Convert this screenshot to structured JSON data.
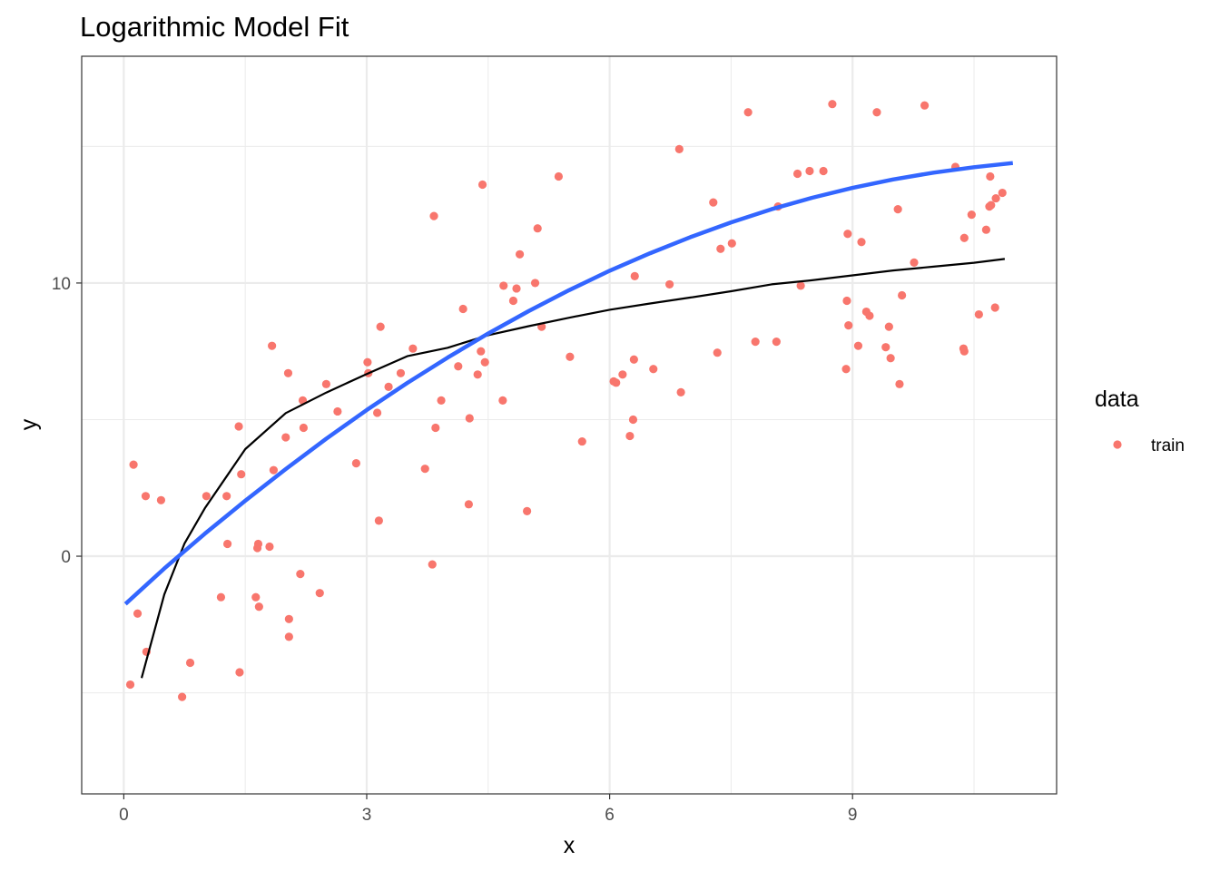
{
  "chart_data": {
    "type": "scatter",
    "title": "Logarithmic Model Fit",
    "xlabel": "x",
    "ylabel": "y",
    "xlim": [
      -0.52,
      11.52
    ],
    "ylim": [
      -8.7,
      18.3
    ],
    "x_ticks": [
      0,
      3,
      6,
      9
    ],
    "y_ticks": [
      0,
      10
    ],
    "grid": true,
    "legend": {
      "title": "data",
      "position": "right",
      "entries": [
        "train"
      ]
    },
    "colors": {
      "train": "#f8766d",
      "fit_line": "#3366ff",
      "trend_line": "#000000",
      "grid": "#ebebeb"
    },
    "series": [
      {
        "name": "train",
        "points": [
          [
            0.08,
            -4.7
          ],
          [
            0.12,
            3.35
          ],
          [
            0.17,
            -2.1
          ],
          [
            0.27,
            2.2
          ],
          [
            0.28,
            -3.5
          ],
          [
            0.46,
            2.05
          ],
          [
            0.72,
            -5.15
          ],
          [
            0.82,
            -3.9
          ],
          [
            1.02,
            2.2
          ],
          [
            1.2,
            -1.5
          ],
          [
            1.27,
            2.2
          ],
          [
            1.28,
            0.45
          ],
          [
            1.42,
            4.75
          ],
          [
            1.43,
            -4.25
          ],
          [
            1.45,
            3.0
          ],
          [
            1.63,
            -1.5
          ],
          [
            1.65,
            0.3
          ],
          [
            1.66,
            0.45
          ],
          [
            1.67,
            -1.85
          ],
          [
            1.8,
            0.35
          ],
          [
            1.83,
            7.7
          ],
          [
            1.85,
            3.15
          ],
          [
            2.0,
            4.35
          ],
          [
            2.03,
            6.7
          ],
          [
            2.04,
            -2.3
          ],
          [
            2.04,
            -2.95
          ],
          [
            2.18,
            -0.65
          ],
          [
            2.21,
            5.7
          ],
          [
            2.22,
            4.7
          ],
          [
            2.42,
            -1.35
          ],
          [
            2.5,
            6.3
          ],
          [
            2.64,
            5.3
          ],
          [
            2.87,
            3.4
          ],
          [
            3.01,
            7.1
          ],
          [
            3.02,
            6.7
          ],
          [
            3.13,
            5.25
          ],
          [
            3.15,
            1.3
          ],
          [
            3.17,
            8.4
          ],
          [
            3.27,
            6.2
          ],
          [
            3.42,
            6.7
          ],
          [
            3.57,
            7.6
          ],
          [
            3.72,
            3.2
          ],
          [
            3.81,
            -0.3
          ],
          [
            3.83,
            12.45
          ],
          [
            3.85,
            4.7
          ],
          [
            3.92,
            5.7
          ],
          [
            4.13,
            6.95
          ],
          [
            4.19,
            9.05
          ],
          [
            4.26,
            1.9
          ],
          [
            4.27,
            5.05
          ],
          [
            4.37,
            6.65
          ],
          [
            4.41,
            7.5
          ],
          [
            4.43,
            13.6
          ],
          [
            4.46,
            7.1
          ],
          [
            4.68,
            5.7
          ],
          [
            4.69,
            9.9
          ],
          [
            4.81,
            9.35
          ],
          [
            4.85,
            9.8
          ],
          [
            4.89,
            11.05
          ],
          [
            4.98,
            1.65
          ],
          [
            5.08,
            10.0
          ],
          [
            5.11,
            12.0
          ],
          [
            5.16,
            8.4
          ],
          [
            5.37,
            13.9
          ],
          [
            5.51,
            7.3
          ],
          [
            5.66,
            4.2
          ],
          [
            6.05,
            6.4
          ],
          [
            6.08,
            6.35
          ],
          [
            6.16,
            6.65
          ],
          [
            6.25,
            4.4
          ],
          [
            6.29,
            5.0
          ],
          [
            6.3,
            7.2
          ],
          [
            6.31,
            10.25
          ],
          [
            6.54,
            6.85
          ],
          [
            6.74,
            9.95
          ],
          [
            6.86,
            14.9
          ],
          [
            6.88,
            6.0
          ],
          [
            7.28,
            12.95
          ],
          [
            7.33,
            7.45
          ],
          [
            7.37,
            11.25
          ],
          [
            7.51,
            11.45
          ],
          [
            7.71,
            16.25
          ],
          [
            7.8,
            7.85
          ],
          [
            8.06,
            7.85
          ],
          [
            8.08,
            12.8
          ],
          [
            8.32,
            14.0
          ],
          [
            8.36,
            9.9
          ],
          [
            8.47,
            14.1
          ],
          [
            8.64,
            14.1
          ],
          [
            8.75,
            16.55
          ],
          [
            8.92,
            6.85
          ],
          [
            8.93,
            9.35
          ],
          [
            8.94,
            11.8
          ],
          [
            8.95,
            8.45
          ],
          [
            9.07,
            7.7
          ],
          [
            9.11,
            11.5
          ],
          [
            9.17,
            8.95
          ],
          [
            9.21,
            8.8
          ],
          [
            9.3,
            16.25
          ],
          [
            9.41,
            7.65
          ],
          [
            9.45,
            8.4
          ],
          [
            9.47,
            7.25
          ],
          [
            9.56,
            12.7
          ],
          [
            9.58,
            6.3
          ],
          [
            9.61,
            9.55
          ],
          [
            9.76,
            10.75
          ],
          [
            9.89,
            16.5
          ],
          [
            10.27,
            14.25
          ],
          [
            10.37,
            7.6
          ],
          [
            10.38,
            7.5
          ],
          [
            10.38,
            11.65
          ],
          [
            10.47,
            12.5
          ],
          [
            10.56,
            8.85
          ],
          [
            10.65,
            11.95
          ],
          [
            10.69,
            12.8
          ],
          [
            10.7,
            13.9
          ],
          [
            10.71,
            12.85
          ],
          [
            10.76,
            9.1
          ],
          [
            10.77,
            13.1
          ],
          [
            10.85,
            13.3
          ]
        ]
      },
      {
        "name": "",
        "kind": "line",
        "x": [
          0.22,
          0.5,
          0.75,
          1.0,
          1.5,
          2.0,
          2.5,
          3.0,
          3.5,
          4.0,
          4.5,
          5.0,
          5.5,
          6.0,
          6.5,
          7.0,
          7.5,
          8.0,
          8.5,
          9.0,
          9.5,
          10.0,
          10.5,
          10.88
        ],
        "y": [
          -4.46,
          -1.4,
          0.47,
          1.75,
          3.92,
          5.24,
          5.99,
          6.67,
          7.32,
          7.63,
          8.09,
          8.42,
          8.73,
          9.02,
          9.25,
          9.47,
          9.7,
          9.95,
          10.1,
          10.28,
          10.46,
          10.6,
          10.74,
          10.88
        ]
      },
      {
        "name": "",
        "kind": "line",
        "x": [
          0.02,
          0.5,
          1.0,
          1.5,
          2.0,
          2.5,
          3.0,
          3.5,
          4.0,
          4.5,
          5.0,
          5.5,
          6.0,
          6.5,
          7.0,
          7.5,
          8.0,
          8.5,
          9.0,
          9.5,
          10.0,
          10.5,
          10.98
        ],
        "y": [
          -1.75,
          -0.45,
          0.82,
          2.03,
          3.19,
          4.3,
          5.35,
          6.34,
          7.27,
          8.15,
          8.97,
          9.74,
          10.45,
          11.09,
          11.68,
          12.22,
          12.7,
          13.12,
          13.48,
          13.79,
          14.04,
          14.24,
          14.39
        ]
      }
    ]
  }
}
